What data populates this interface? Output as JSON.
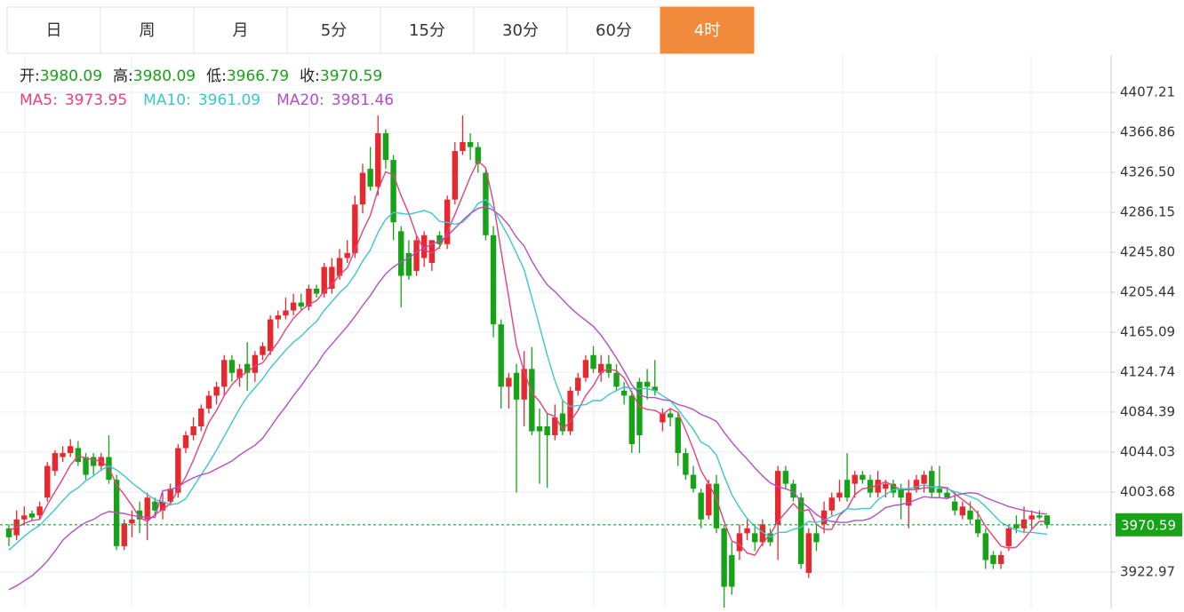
{
  "tabs": [
    "日",
    "周",
    "月",
    "5分",
    "15分",
    "30分",
    "60分",
    "4时"
  ],
  "active_tab": 7,
  "chart_data": {
    "type": "candlestick",
    "info_labels": [
      "开:",
      "高:",
      "低:",
      "收:"
    ],
    "up_color": "#e8282f",
    "down_color": "#17a317",
    "price_line_color": "#17a317",
    "ylim": [
      3886.1,
      4444.9
    ],
    "yticks": [
      4407.21,
      4366.86,
      {
        "value": 4326.5,
        "label": "4326.50"
      },
      4286.15,
      {
        "value": 4245.8,
        "label": "4245.80"
      },
      4205.44,
      4165.09,
      4124.74,
      4084.39,
      4044.03,
      4003.68,
      3922.97
    ],
    "grid": true,
    "ohlc": [
      [
        3967,
        3971,
        3949,
        3958
      ],
      [
        3960,
        3985,
        3955,
        3976
      ],
      [
        3976,
        3989,
        3970,
        3980
      ],
      [
        3982,
        3985,
        3975,
        3978
      ],
      [
        3980,
        3994,
        3976,
        3989
      ],
      [
        3998,
        4034,
        3994,
        4030
      ],
      [
        4025,
        4046,
        4020,
        4043
      ],
      [
        4039,
        4050,
        4034,
        4043
      ],
      [
        4043,
        4057,
        4039,
        4050
      ],
      [
        4048,
        4055,
        4030,
        4034
      ],
      [
        4039,
        4043,
        4016,
        4021
      ],
      [
        4039,
        4043,
        4021,
        4030
      ],
      [
        4030,
        4043,
        4025,
        4039
      ],
      [
        4039,
        4061,
        4012,
        4016
      ],
      [
        4016,
        4021,
        3945,
        3949
      ],
      [
        3949,
        3976,
        3945,
        3972
      ],
      [
        3972,
        3985,
        3958,
        3976
      ],
      [
        3985,
        3994,
        3962,
        3976
      ],
      [
        3976,
        4003,
        3955,
        3998
      ],
      [
        3994,
        3998,
        3980,
        3985
      ],
      [
        3985,
        4003,
        3976,
        3994
      ],
      [
        3994,
        4012,
        3990,
        4007
      ],
      [
        4003,
        4052,
        3998,
        4048
      ],
      [
        4048,
        4065,
        4043,
        4061
      ],
      [
        4061,
        4079,
        4056,
        4070
      ],
      [
        4070,
        4092,
        4065,
        4088
      ],
      [
        4088,
        4106,
        4083,
        4101
      ],
      [
        4101,
        4115,
        4092,
        4110
      ],
      [
        4110,
        4142,
        4101,
        4137
      ],
      [
        4137,
        4142,
        4115,
        4124
      ],
      [
        4119,
        4133,
        4110,
        4128
      ],
      [
        4133,
        4155,
        4106,
        4124
      ],
      [
        4124,
        4146,
        4115,
        4142
      ],
      [
        4142,
        4155,
        4137,
        4151
      ],
      [
        4146,
        4182,
        4142,
        4178
      ],
      [
        4178,
        4187,
        4169,
        4182
      ],
      [
        4182,
        4200,
        4178,
        4187
      ],
      [
        4187,
        4204,
        4182,
        4195
      ],
      [
        4195,
        4204,
        4187,
        4191
      ],
      [
        4191,
        4213,
        4187,
        4209
      ],
      [
        4209,
        4213,
        4200,
        4204
      ],
      [
        4204,
        4235,
        4200,
        4231
      ],
      [
        4209,
        4240,
        4204,
        4231
      ],
      [
        4222,
        4249,
        4218,
        4240
      ],
      [
        4240,
        4258,
        4235,
        4245
      ],
      [
        4245,
        4303,
        4240,
        4294
      ],
      [
        4294,
        4335,
        4285,
        4326
      ],
      [
        4330,
        4352,
        4308,
        4312
      ],
      [
        4312,
        4384,
        4303,
        4366
      ],
      [
        4366,
        4370,
        4330,
        4339
      ],
      [
        4339,
        4344,
        4258,
        4276
      ],
      [
        4267,
        4272,
        4190,
        4222
      ],
      [
        4245,
        4258,
        4218,
        4222
      ],
      [
        4227,
        4263,
        4222,
        4258
      ],
      [
        4240,
        4267,
        4231,
        4263
      ],
      [
        4235,
        4258,
        4227,
        4258
      ],
      [
        4263,
        4267,
        4249,
        4254
      ],
      [
        4254,
        4303,
        4249,
        4299
      ],
      [
        4299,
        4357,
        4294,
        4348
      ],
      [
        4348,
        4384,
        4344,
        4357
      ],
      [
        4357,
        4366,
        4339,
        4352
      ],
      [
        4352,
        4357,
        4326,
        4335
      ],
      [
        4326,
        4330,
        4258,
        4263
      ],
      [
        4263,
        4272,
        4160,
        4173
      ],
      [
        4173,
        4178,
        4088,
        4110
      ],
      [
        4110,
        4124,
        4088,
        4119
      ],
      [
        4124,
        4133,
        4003,
        4097
      ],
      [
        4097,
        4146,
        4070,
        4128
      ],
      [
        4128,
        4150,
        4061,
        4065
      ],
      [
        4070,
        4088,
        4012,
        4065
      ],
      [
        4070,
        4083,
        4008,
        4061
      ],
      [
        4061,
        4092,
        4056,
        4079
      ],
      [
        4083,
        4097,
        4061,
        4065
      ],
      [
        4065,
        4110,
        4061,
        4106
      ],
      [
        4106,
        4124,
        4101,
        4119
      ],
      [
        4119,
        4142,
        4115,
        4137
      ],
      [
        4142,
        4151,
        4124,
        4128
      ],
      [
        4124,
        4142,
        4115,
        4133
      ],
      [
        4133,
        4142,
        4119,
        4124
      ],
      [
        4124,
        4133,
        4106,
        4110
      ],
      [
        4106,
        4115,
        4092,
        4101
      ],
      [
        4101,
        4106,
        4043,
        4052
      ],
      [
        4115,
        4119,
        4043,
        4061
      ],
      [
        4115,
        4128,
        4097,
        4110
      ],
      [
        4110,
        4137,
        4101,
        4106
      ],
      [
        4074,
        4088,
        4065,
        4083
      ],
      [
        4083,
        4088,
        4070,
        4079
      ],
      [
        4079,
        4083,
        4030,
        4043
      ],
      [
        4043,
        4048,
        4016,
        4021
      ],
      [
        4021,
        4030,
        4003,
        4007
      ],
      [
        4003,
        4007,
        3967,
        3976
      ],
      [
        3980,
        4016,
        3976,
        4012
      ],
      [
        4012,
        4021,
        3962,
        3967
      ],
      [
        3967,
        3971,
        3887,
        3908
      ],
      [
        3940,
        3953,
        3900,
        3908
      ],
      [
        3944,
        3971,
        3935,
        3962
      ],
      [
        3962,
        3976,
        3955,
        3967
      ],
      [
        3962,
        3971,
        3944,
        3953
      ],
      [
        3953,
        3976,
        3949,
        3971
      ],
      [
        3962,
        3967,
        3949,
        3953
      ],
      [
        3971,
        4030,
        3935,
        4025
      ],
      [
        4025,
        4030,
        4007,
        4012
      ],
      [
        4012,
        4016,
        3994,
        3998
      ],
      [
        3998,
        4003,
        3926,
        3931
      ],
      [
        3922,
        3967,
        3917,
        3962
      ],
      [
        3962,
        3971,
        3944,
        3953
      ],
      [
        3971,
        3994,
        3962,
        3985
      ],
      [
        3985,
        4003,
        3980,
        3998
      ],
      [
        3998,
        4016,
        3994,
        4003
      ],
      [
        4016,
        4043,
        3994,
        3998
      ],
      [
        4012,
        4025,
        3998,
        4021
      ],
      [
        4021,
        4025,
        4012,
        4016
      ],
      [
        4016,
        4021,
        3998,
        4003
      ],
      [
        4003,
        4025,
        3998,
        4016
      ],
      [
        4007,
        4016,
        3998,
        4012
      ],
      [
        4012,
        4016,
        3998,
        4003
      ],
      [
        4007,
        4012,
        3976,
        3998
      ],
      [
        3990,
        4016,
        3967,
        4003
      ],
      [
        4007,
        4021,
        4003,
        4016
      ],
      [
        4012,
        4025,
        4003,
        4021
      ],
      [
        4025,
        4030,
        3998,
        4003
      ],
      [
        4007,
        4030,
        3998,
        4003
      ],
      [
        4003,
        4007,
        3998,
        3998
      ],
      [
        3994,
        4003,
        3980,
        3985
      ],
      [
        3980,
        3994,
        3976,
        3989
      ],
      [
        3985,
        3994,
        3971,
        3976
      ],
      [
        3976,
        3985,
        3958,
        3962
      ],
      [
        3962,
        3967,
        3926,
        3935
      ],
      [
        3940,
        3944,
        3926,
        3931
      ],
      [
        3931,
        3944,
        3926,
        3940
      ],
      [
        3949,
        3971,
        3944,
        3967
      ],
      [
        3971,
        3980,
        3962,
        3967
      ],
      [
        3967,
        3989,
        3962,
        3976
      ],
      [
        3976,
        3985,
        3967,
        3980
      ],
      [
        3980,
        3985,
        3976,
        3978
      ],
      [
        3980.09,
        3980.09,
        3966.79,
        3970.59
      ]
    ],
    "series": [
      {
        "name": "MA5:",
        "color": "#e2437d",
        "values": [
          3965,
          3968,
          3972,
          3975,
          3976,
          3991,
          4004,
          4017,
          4031,
          4040,
          4038,
          4036,
          4035,
          4028,
          4011,
          4001,
          3990,
          3978,
          3974,
          3981,
          3986,
          3992,
          4006,
          4019,
          4036,
          4055,
          4074,
          4086,
          4101,
          4112,
          4120,
          4125,
          4131,
          4134,
          4145,
          4155,
          4168,
          4179,
          4187,
          4193,
          4197,
          4206,
          4213,
          4223,
          4230,
          4248,
          4267,
          4283,
          4309,
          4327,
          4324,
          4303,
          4285,
          4263,
          4248,
          4245,
          4251,
          4266,
          4284,
          4303,
          4322,
          4338,
          4331,
          4296,
          4247,
          4200,
          4152,
          4125,
          4104,
          4095,
          4083,
          4080,
          4067,
          4075,
          4086,
          4101,
          4111,
          4125,
          4128,
          4126,
          4119,
          4104,
          4090,
          4087,
          4086,
          4082,
          4088,
          4084,
          4066,
          4047,
          4025,
          4012,
          3997,
          3974,
          3954,
          3951,
          3942,
          3940,
          3952,
          3961,
          3974,
          3983,
          3992,
          3984,
          3986,
          3971,
          3966,
          3966,
          3980,
          3987,
          4001,
          4007,
          4008,
          4011,
          4014,
          4010,
          4006,
          4006,
          4006,
          4008,
          4008,
          4009,
          4008,
          4002,
          3996,
          3990,
          3982,
          3969,
          3959,
          3949,
          3947,
          3948,
          3956,
          3966,
          3974,
          3973.95
        ]
      },
      {
        "name": "MA10:",
        "color": "#3cc6cf",
        "values": [
          3945,
          3952,
          3959,
          3965,
          3970,
          3978,
          3986,
          3995,
          4003,
          4008,
          4015,
          4020,
          4026,
          4030,
          4026,
          4020,
          4013,
          4007,
          4001,
          3996,
          3994,
          3991,
          3992,
          3997,
          4009,
          4021,
          4033,
          4046,
          4060,
          4074,
          4088,
          4100,
          4109,
          4118,
          4129,
          4138,
          4147,
          4155,
          4161,
          4169,
          4176,
          4187,
          4196,
          4205,
          4212,
          4223,
          4237,
          4248,
          4266,
          4279,
          4286,
          4285,
          4284,
          4286,
          4288,
          4285,
          4277,
          4276,
          4274,
          4276,
          4284,
          4295,
          4299,
          4290,
          4275,
          4261,
          4245,
          4228,
          4200,
          4171,
          4142,
          4116,
          4096,
          4090,
          4091,
          4092,
          4096,
          4096,
          4102,
          4106,
          4110,
          4108,
          4108,
          4108,
          4106,
          4101,
          4096,
          4087,
          4077,
          4067,
          4054,
          4050,
          4041,
          4020,
          4001,
          3988,
          3977,
          3969,
          3963,
          3958,
          3963,
          3963,
          3966,
          3968,
          3974,
          3973,
          3975,
          3979,
          3982,
          3987,
          3986,
          3987,
          3987,
          3996,
          4001,
          4006,
          4007,
          4007,
          4009,
          4011,
          4009,
          4008,
          4007,
          4004,
          4002,
          3999,
          3996,
          3989,
          3981,
          3973,
          3969,
          3965,
          3963,
          3963,
          3962,
          3961.09
        ]
      },
      {
        "name": "MA20:",
        "color": "#b24fc4",
        "values": [
          3905,
          3909,
          3914,
          3919,
          3926,
          3934,
          3944,
          3955,
          3962,
          3968,
          3973,
          3976,
          3981,
          3984,
          3983,
          3982,
          3980,
          3979,
          3978,
          3978,
          4005,
          4006,
          4009,
          4014,
          4018,
          4021,
          4023,
          4027,
          4031,
          4035,
          4041,
          4046,
          4051,
          4058,
          4069,
          4080,
          4090,
          4101,
          4111,
          4122,
          4132,
          4144,
          4153,
          4162,
          4171,
          4181,
          4192,
          4202,
          4214,
          4224,
          4231,
          4236,
          4240,
          4246,
          4250,
          4254,
          4257,
          4262,
          4270,
          4278,
          4285,
          4290,
          4292,
          4288,
          4282,
          4273,
          4261,
          4252,
          4237,
          4224,
          4213,
          4206,
          4198,
          4190,
          4183,
          4177,
          4171,
          4162,
          4151,
          4139,
          4126,
          4112,
          4102,
          4099,
          4099,
          4097,
          4096,
          4092,
          4090,
          4087,
          4082,
          4079,
          4075,
          4064,
          4054,
          4045,
          4037,
          4028,
          4020,
          4013,
          4009,
          4007,
          4004,
          3994,
          3988,
          3981,
          3976,
          3974,
          3973,
          3973,
          3975,
          3975,
          3977,
          3982,
          3988,
          3990,
          3991,
          3993,
          3996,
          3999,
          3998,
          3998,
          3997,
          4000,
          4002,
          4003,
          4002,
          3998,
          3995,
          3992,
          3989,
          3987,
          3985,
          3984,
          3982,
          3981.46
        ]
      }
    ]
  }
}
